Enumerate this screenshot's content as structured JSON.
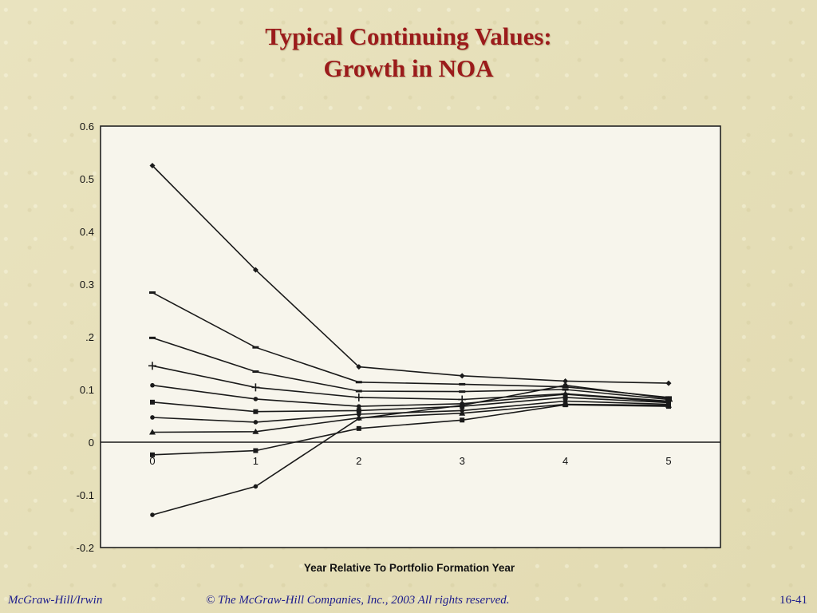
{
  "slide": {
    "title_line1": "Typical Continuing Values:",
    "title_line2": "Growth in NOA",
    "footer_left": "McGraw-Hill/Irwin",
    "footer_center": "© The McGraw-Hill Companies, Inc., 2003  All rights reserved.",
    "footer_right": "16-41"
  },
  "chart_data": {
    "type": "line",
    "title": "",
    "xlabel": "Year Relative To Portfolio Formation Year",
    "ylabel": "",
    "x": [
      0,
      1,
      2,
      3,
      4,
      5
    ],
    "x_tick_labels": [
      "0",
      "1",
      "2",
      "3",
      "4",
      "5"
    ],
    "y_tick_labels": [
      "0.6",
      "0.5",
      "0.4",
      "0.3",
      ".2",
      "0.1",
      "0",
      "-0.1",
      "-0.2"
    ],
    "y_tick_values": [
      0.6,
      0.5,
      0.4,
      0.3,
      0.2,
      0.1,
      0,
      -0.1,
      -0.2
    ],
    "ylim": [
      -0.2,
      0.6
    ],
    "xlim": [
      -0.5,
      5.5
    ],
    "grid": false,
    "legend": "none",
    "line_color": "#1a1a1a",
    "series": [
      {
        "marker": "diamond",
        "values": [
          0.525,
          0.327,
          0.143,
          0.126,
          0.116,
          0.112
        ]
      },
      {
        "marker": "dash",
        "values": [
          0.284,
          0.18,
          0.114,
          0.11,
          0.105,
          0.085
        ]
      },
      {
        "marker": "dash",
        "values": [
          0.198,
          0.134,
          0.097,
          0.096,
          0.1,
          0.081
        ]
      },
      {
        "marker": "plus",
        "values": [
          0.145,
          0.104,
          0.085,
          0.081,
          0.092,
          0.078
        ]
      },
      {
        "marker": "circle",
        "values": [
          0.108,
          0.082,
          0.068,
          0.073,
          0.091,
          0.076
        ]
      },
      {
        "marker": "square",
        "values": [
          0.076,
          0.058,
          0.06,
          0.068,
          0.085,
          0.075
        ]
      },
      {
        "marker": "circle",
        "values": [
          0.047,
          0.038,
          0.053,
          0.06,
          0.078,
          0.072
        ]
      },
      {
        "marker": "triangle",
        "values": [
          0.019,
          0.02,
          0.046,
          0.055,
          0.072,
          0.07
        ]
      },
      {
        "marker": "square",
        "values": [
          -0.024,
          -0.016,
          0.026,
          0.042,
          0.071,
          0.068
        ]
      },
      {
        "marker": "circle",
        "values": [
          -0.138,
          -0.084,
          0.045,
          0.07,
          0.108,
          0.083
        ]
      }
    ]
  }
}
